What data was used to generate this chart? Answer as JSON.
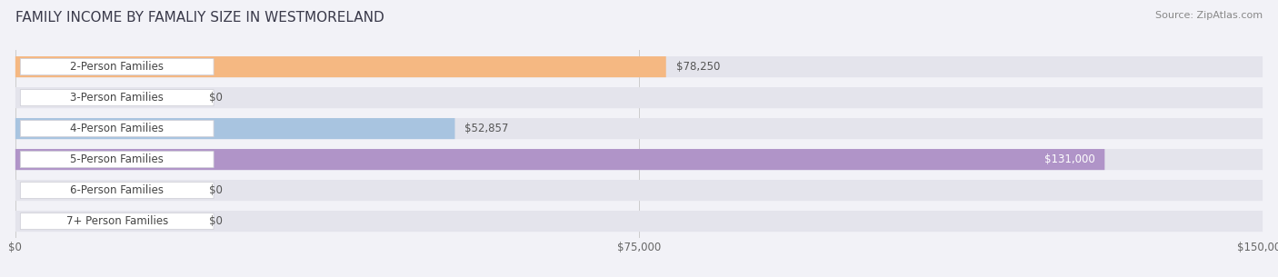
{
  "title": "FAMILY INCOME BY FAMALIY SIZE IN WESTMORELAND",
  "source": "Source: ZipAtlas.com",
  "categories": [
    "2-Person Families",
    "3-Person Families",
    "4-Person Families",
    "5-Person Families",
    "6-Person Families",
    "7+ Person Families"
  ],
  "values": [
    78250,
    0,
    52857,
    131000,
    0,
    0
  ],
  "bar_colors": [
    "#f5b882",
    "#f4a0a8",
    "#a8c4e0",
    "#b094c8",
    "#6ecfbe",
    "#b0b8e0"
  ],
  "label_colors": [
    "#555555",
    "#555555",
    "#555555",
    "#ffffff",
    "#555555",
    "#555555"
  ],
  "value_labels": [
    "$78,250",
    "$0",
    "$52,857",
    "$131,000",
    "$0",
    "$0"
  ],
  "xlim": [
    0,
    150000
  ],
  "xtick_labels": [
    "$0",
    "$75,000",
    "$150,000"
  ],
  "background_color": "#f2f2f7",
  "bar_background": "#e4e4ec",
  "bar_height": 0.68,
  "title_fontsize": 11,
  "label_fontsize": 8.5,
  "value_fontsize": 8.5,
  "source_fontsize": 8
}
